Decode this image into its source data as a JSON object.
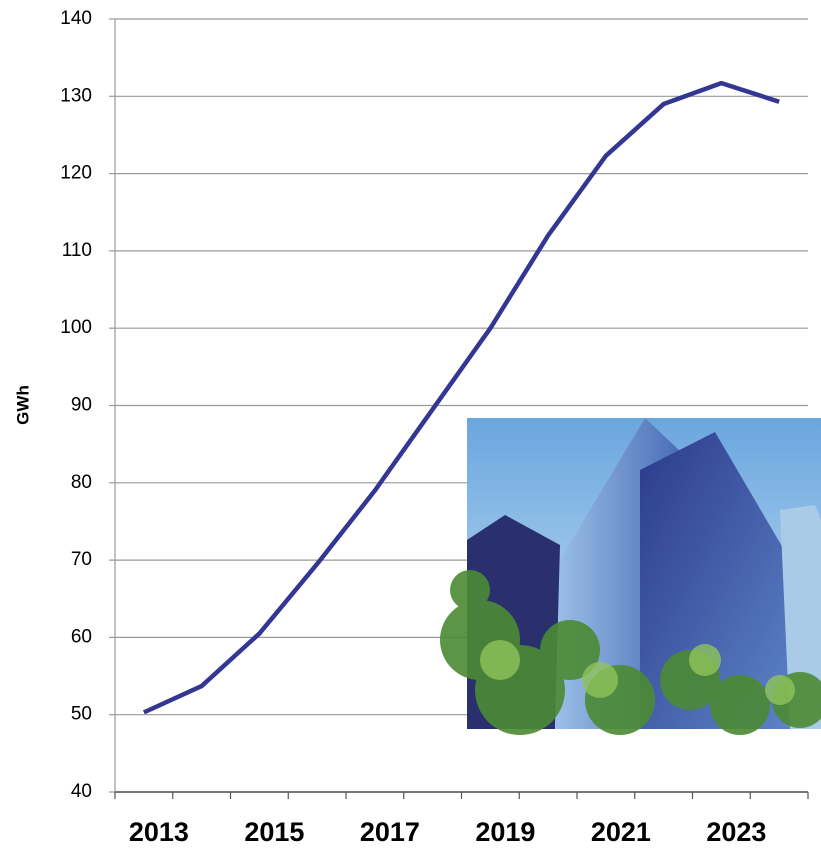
{
  "chart_data": {
    "type": "line",
    "y_label": "GWh",
    "categories": [
      "2013",
      null,
      "2015",
      null,
      "2017",
      null,
      "2019",
      null,
      "2021",
      null,
      "2023",
      null
    ],
    "series": [
      {
        "color": "#343694",
        "values": [
          50.3,
          53.7,
          60.5,
          69.5,
          79,
          89.5,
          100,
          112,
          122.3,
          129,
          131.7,
          129.3
        ]
      }
    ],
    "ylim": [
      40,
      140
    ],
    "yticks": [
      40,
      50,
      60,
      70,
      80,
      90,
      100,
      110,
      120,
      130,
      140
    ],
    "grid": true
  }
}
